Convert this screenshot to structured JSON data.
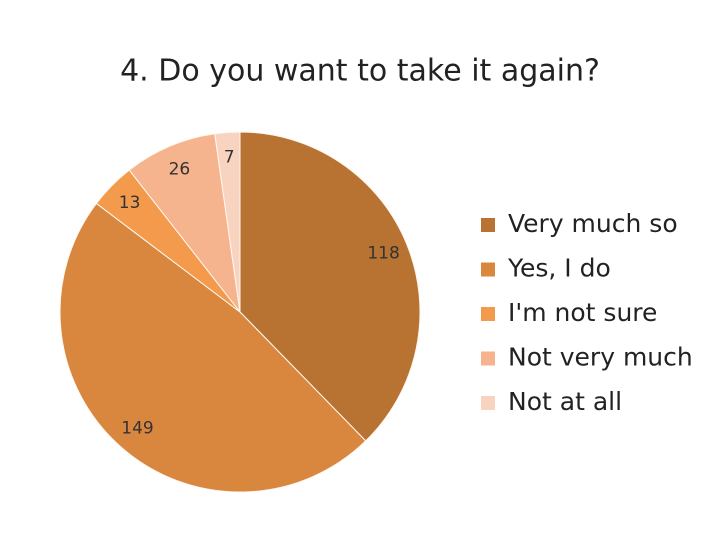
{
  "chart_data": {
    "type": "pie",
    "title": "4. Do you want to take it again?",
    "categories": [
      "Very much so",
      "Yes, I do",
      "I'm not sure",
      "Not very much",
      "Not at all"
    ],
    "values": [
      118,
      149,
      13,
      26,
      7
    ],
    "colors": [
      "#b87333",
      "#d9873f",
      "#f39a4c",
      "#f5b48d",
      "#f8d3bf"
    ],
    "legend": "right"
  }
}
